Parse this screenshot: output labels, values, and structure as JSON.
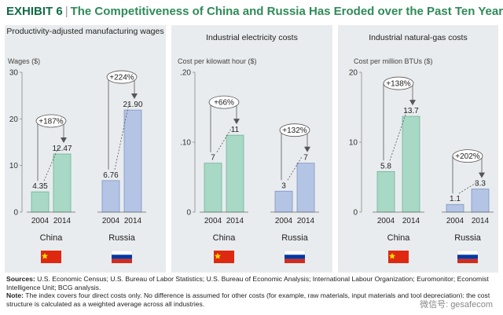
{
  "header": {
    "label": "EXHIBIT 6",
    "separator": "|",
    "title": "The Competitiveness of China and Russia Has Eroded over the Past Ten Years"
  },
  "colors": {
    "china_bar": "#a8d9c6",
    "russia_bar": "#b4c4e4",
    "china_stroke": "#6bb39a",
    "russia_stroke": "#7f95c6",
    "header": "#2e8b57"
  },
  "chart_data": [
    {
      "type": "bar",
      "title": "Productivity-adjusted manufacturing wages",
      "ylabel": "Wages ($)",
      "ylim": [
        0,
        30
      ],
      "yticks": [
        "0",
        "10",
        "20",
        "30"
      ],
      "groups": [
        {
          "name": "China",
          "flag": "china-flag",
          "categories": [
            "2004",
            "2014"
          ],
          "values": [
            4.35,
            12.47
          ],
          "labels": [
            "4.35",
            "12.47"
          ],
          "change": "+187%"
        },
        {
          "name": "Russia",
          "flag": "russia-flag",
          "categories": [
            "2004",
            "2014"
          ],
          "values": [
            6.76,
            21.9
          ],
          "labels": [
            "6.76",
            "21.90"
          ],
          "change": "+224%"
        }
      ]
    },
    {
      "type": "bar",
      "title": "Industrial electricity costs",
      "ylabel": "Cost per kilowatt hour ($)",
      "ylim": [
        0,
        0.2
      ],
      "yticks": [
        "0",
        ".10",
        ".20"
      ],
      "groups": [
        {
          "name": "China",
          "flag": "china-flag",
          "categories": [
            "2004",
            "2014"
          ],
          "values": [
            0.07,
            0.11
          ],
          "labels": [
            "7",
            "11"
          ],
          "change": "+66%"
        },
        {
          "name": "Russia",
          "flag": "russia-flag",
          "categories": [
            "2004",
            "2014"
          ],
          "values": [
            0.03,
            0.07
          ],
          "labels": [
            "3",
            "7"
          ],
          "change": "+132%"
        }
      ]
    },
    {
      "type": "bar",
      "title": "Industrial natural-gas costs",
      "ylabel": "Cost per million BTUs ($)",
      "ylim": [
        0,
        20
      ],
      "yticks": [
        "0",
        "10",
        "20"
      ],
      "groups": [
        {
          "name": "China",
          "flag": "china-flag",
          "categories": [
            "2004",
            "2014"
          ],
          "values": [
            5.8,
            13.7
          ],
          "labels": [
            "5.8",
            "13.7"
          ],
          "change": "+138%"
        },
        {
          "name": "Russia",
          "flag": "russia-flag",
          "categories": [
            "2004",
            "2014"
          ],
          "values": [
            1.1,
            3.3
          ],
          "labels": [
            "1.1",
            "3.3"
          ],
          "change": "+202%"
        }
      ]
    }
  ],
  "footer": {
    "sources_label": "Sources:",
    "sources_text": "U.S. Economic Census; U.S. Bureau of Labor Statistics; U.S. Bureau of Economic Analysis; International Labour Organization; Euromonitor; Economist Intelligence Unit; BCG analysis.",
    "note_label": "Note:",
    "note_text": "The index covers four direct costs only. No difference is assumed for other costs (for example, raw materials, input materials and tool depreciation); the cost structure is calculated as a weighted average across all industries.",
    "watermark": "微信号: gesafecom"
  }
}
